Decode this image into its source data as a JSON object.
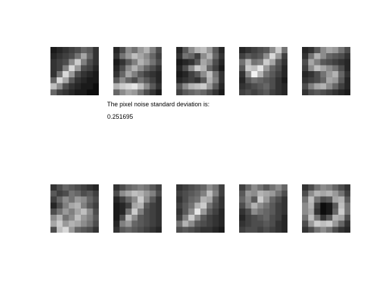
{
  "title": "The pixel noise standard deviation is:",
  "noise_std": "0.251695",
  "colormap": "gray",
  "grid_size": 8,
  "top_row": [
    {
      "pixels": [
        [
          0.1,
          0.15,
          0.2,
          0.25,
          0.3,
          0.4,
          0.35,
          0.2
        ],
        [
          0.15,
          0.2,
          0.25,
          0.3,
          0.45,
          0.65,
          0.4,
          0.2
        ],
        [
          0.2,
          0.25,
          0.3,
          0.55,
          0.8,
          0.5,
          0.3,
          0.2
        ],
        [
          0.2,
          0.25,
          0.5,
          0.85,
          0.6,
          0.3,
          0.25,
          0.15
        ],
        [
          0.2,
          0.45,
          0.85,
          0.6,
          0.3,
          0.2,
          0.15,
          0.1
        ],
        [
          0.4,
          0.85,
          0.65,
          0.35,
          0.2,
          0.15,
          0.1,
          0.1
        ],
        [
          0.75,
          0.55,
          0.3,
          0.2,
          0.15,
          0.1,
          0.1,
          0.05
        ],
        [
          0.4,
          0.25,
          0.2,
          0.15,
          0.1,
          0.1,
          0.05,
          0.05
        ]
      ]
    },
    {
      "pixels": [
        [
          0.15,
          0.3,
          0.55,
          0.45,
          0.6,
          0.7,
          0.5,
          0.3
        ],
        [
          0.2,
          0.45,
          0.6,
          0.75,
          0.65,
          0.55,
          0.4,
          0.25
        ],
        [
          0.1,
          0.2,
          0.35,
          0.5,
          0.7,
          0.6,
          0.45,
          0.3
        ],
        [
          0.15,
          0.3,
          0.55,
          0.7,
          0.55,
          0.4,
          0.3,
          0.2
        ],
        [
          0.2,
          0.4,
          0.65,
          0.5,
          0.35,
          0.25,
          0.2,
          0.15
        ],
        [
          0.35,
          0.55,
          0.4,
          0.3,
          0.45,
          0.35,
          0.25,
          0.15
        ],
        [
          0.7,
          0.8,
          0.85,
          0.9,
          0.75,
          0.55,
          0.35,
          0.2
        ],
        [
          0.4,
          0.55,
          0.65,
          0.6,
          0.45,
          0.3,
          0.2,
          0.1
        ]
      ]
    },
    {
      "pixels": [
        [
          0.15,
          0.35,
          0.55,
          0.7,
          0.75,
          0.6,
          0.35,
          0.15
        ],
        [
          0.2,
          0.45,
          0.4,
          0.25,
          0.55,
          0.7,
          0.4,
          0.2
        ],
        [
          0.1,
          0.15,
          0.2,
          0.35,
          0.65,
          0.55,
          0.3,
          0.15
        ],
        [
          0.15,
          0.3,
          0.55,
          0.8,
          0.7,
          0.4,
          0.25,
          0.1
        ],
        [
          0.1,
          0.15,
          0.25,
          0.35,
          0.55,
          0.75,
          0.45,
          0.2
        ],
        [
          0.15,
          0.2,
          0.25,
          0.2,
          0.35,
          0.7,
          0.5,
          0.2
        ],
        [
          0.35,
          0.55,
          0.7,
          0.75,
          0.8,
          0.6,
          0.35,
          0.15
        ],
        [
          0.25,
          0.35,
          0.4,
          0.45,
          0.4,
          0.3,
          0.2,
          0.1
        ]
      ]
    },
    {
      "pixels": [
        [
          0.15,
          0.2,
          0.25,
          0.3,
          0.35,
          0.55,
          0.8,
          0.45
        ],
        [
          0.25,
          0.35,
          0.3,
          0.35,
          0.55,
          0.85,
          0.6,
          0.25
        ],
        [
          0.45,
          0.7,
          0.45,
          0.5,
          0.8,
          0.65,
          0.35,
          0.2
        ],
        [
          0.35,
          0.8,
          0.75,
          0.9,
          0.6,
          0.4,
          0.3,
          0.15
        ],
        [
          0.2,
          0.55,
          0.95,
          0.7,
          0.45,
          0.35,
          0.25,
          0.15
        ],
        [
          0.15,
          0.35,
          0.45,
          0.4,
          0.35,
          0.3,
          0.2,
          0.1
        ],
        [
          0.2,
          0.25,
          0.3,
          0.35,
          0.4,
          0.3,
          0.2,
          0.15
        ],
        [
          0.25,
          0.3,
          0.25,
          0.3,
          0.35,
          0.25,
          0.2,
          0.15
        ]
      ]
    },
    {
      "pixels": [
        [
          0.15,
          0.2,
          0.35,
          0.55,
          0.65,
          0.6,
          0.45,
          0.3
        ],
        [
          0.2,
          0.45,
          0.7,
          0.55,
          0.4,
          0.35,
          0.3,
          0.2
        ],
        [
          0.3,
          0.65,
          0.5,
          0.35,
          0.3,
          0.25,
          0.2,
          0.15
        ],
        [
          0.25,
          0.55,
          0.75,
          0.65,
          0.55,
          0.45,
          0.3,
          0.15
        ],
        [
          0.15,
          0.2,
          0.3,
          0.45,
          0.6,
          0.7,
          0.4,
          0.2
        ],
        [
          0.2,
          0.25,
          0.3,
          0.4,
          0.65,
          0.6,
          0.35,
          0.15
        ],
        [
          0.3,
          0.5,
          0.65,
          0.7,
          0.55,
          0.4,
          0.25,
          0.15
        ],
        [
          0.2,
          0.3,
          0.35,
          0.3,
          0.25,
          0.2,
          0.15,
          0.1
        ]
      ]
    }
  ],
  "bottom_row": [
    {
      "pixels": [
        [
          0.2,
          0.3,
          0.4,
          0.35,
          0.3,
          0.25,
          0.2,
          0.15
        ],
        [
          0.35,
          0.25,
          0.3,
          0.45,
          0.4,
          0.3,
          0.35,
          0.25
        ],
        [
          0.25,
          0.4,
          0.55,
          0.45,
          0.6,
          0.55,
          0.4,
          0.3
        ],
        [
          0.15,
          0.3,
          0.5,
          0.65,
          0.7,
          0.5,
          0.35,
          0.25
        ],
        [
          0.3,
          0.45,
          0.6,
          0.5,
          0.65,
          0.75,
          0.55,
          0.3
        ],
        [
          0.55,
          0.7,
          0.45,
          0.55,
          0.75,
          0.6,
          0.5,
          0.35
        ],
        [
          0.65,
          0.8,
          0.6,
          0.7,
          0.65,
          0.55,
          0.45,
          0.3
        ],
        [
          0.3,
          0.75,
          0.85,
          0.6,
          0.4,
          0.35,
          0.3,
          0.2
        ]
      ]
    },
    {
      "pixels": [
        [
          0.2,
          0.3,
          0.4,
          0.45,
          0.5,
          0.45,
          0.35,
          0.25
        ],
        [
          0.3,
          0.55,
          0.65,
          0.75,
          0.7,
          0.6,
          0.5,
          0.3
        ],
        [
          0.15,
          0.25,
          0.4,
          0.55,
          0.8,
          0.55,
          0.35,
          0.2
        ],
        [
          0.1,
          0.15,
          0.25,
          0.65,
          0.7,
          0.35,
          0.25,
          0.2
        ],
        [
          0.1,
          0.15,
          0.45,
          0.8,
          0.5,
          0.3,
          0.25,
          0.2
        ],
        [
          0.1,
          0.3,
          0.75,
          0.55,
          0.35,
          0.3,
          0.25,
          0.2
        ],
        [
          0.15,
          0.5,
          0.6,
          0.4,
          0.35,
          0.3,
          0.25,
          0.2
        ],
        [
          0.2,
          0.35,
          0.4,
          0.35,
          0.3,
          0.25,
          0.2,
          0.15
        ]
      ]
    },
    {
      "pixels": [
        [
          0.2,
          0.25,
          0.3,
          0.35,
          0.4,
          0.55,
          0.45,
          0.25
        ],
        [
          0.25,
          0.3,
          0.35,
          0.4,
          0.5,
          0.75,
          0.5,
          0.25
        ],
        [
          0.2,
          0.3,
          0.4,
          0.45,
          0.7,
          0.65,
          0.35,
          0.2
        ],
        [
          0.25,
          0.35,
          0.45,
          0.7,
          0.8,
          0.45,
          0.3,
          0.2
        ],
        [
          0.2,
          0.35,
          0.55,
          0.9,
          0.6,
          0.35,
          0.25,
          0.15
        ],
        [
          0.25,
          0.5,
          0.8,
          0.55,
          0.35,
          0.25,
          0.2,
          0.15
        ],
        [
          0.45,
          0.7,
          0.55,
          0.35,
          0.3,
          0.25,
          0.2,
          0.15
        ],
        [
          0.3,
          0.35,
          0.3,
          0.25,
          0.2,
          0.2,
          0.15,
          0.1
        ]
      ]
    },
    {
      "pixels": [
        [
          0.25,
          0.4,
          0.55,
          0.45,
          0.35,
          0.45,
          0.55,
          0.4
        ],
        [
          0.35,
          0.6,
          0.55,
          0.7,
          0.65,
          0.6,
          0.45,
          0.3
        ],
        [
          0.4,
          0.55,
          0.35,
          0.8,
          0.6,
          0.4,
          0.3,
          0.2
        ],
        [
          0.3,
          0.5,
          0.7,
          0.55,
          0.45,
          0.35,
          0.25,
          0.2
        ],
        [
          0.2,
          0.3,
          0.55,
          0.45,
          0.4,
          0.35,
          0.25,
          0.2
        ],
        [
          0.15,
          0.25,
          0.3,
          0.35,
          0.4,
          0.3,
          0.25,
          0.15
        ],
        [
          0.2,
          0.25,
          0.3,
          0.3,
          0.35,
          0.3,
          0.2,
          0.15
        ],
        [
          0.25,
          0.3,
          0.3,
          0.25,
          0.3,
          0.25,
          0.2,
          0.15
        ]
      ]
    },
    {
      "pixels": [
        [
          0.2,
          0.3,
          0.45,
          0.55,
          0.5,
          0.4,
          0.3,
          0.2
        ],
        [
          0.3,
          0.55,
          0.7,
          0.65,
          0.7,
          0.6,
          0.45,
          0.25
        ],
        [
          0.45,
          0.75,
          0.45,
          0.3,
          0.35,
          0.65,
          0.7,
          0.35
        ],
        [
          0.55,
          0.7,
          0.25,
          0.05,
          0.1,
          0.35,
          0.75,
          0.45
        ],
        [
          0.55,
          0.65,
          0.2,
          0.05,
          0.1,
          0.4,
          0.8,
          0.45
        ],
        [
          0.45,
          0.75,
          0.45,
          0.2,
          0.35,
          0.7,
          0.65,
          0.3
        ],
        [
          0.3,
          0.6,
          0.8,
          0.75,
          0.8,
          0.6,
          0.4,
          0.2
        ],
        [
          0.2,
          0.3,
          0.45,
          0.55,
          0.45,
          0.3,
          0.2,
          0.15
        ]
      ]
    }
  ]
}
